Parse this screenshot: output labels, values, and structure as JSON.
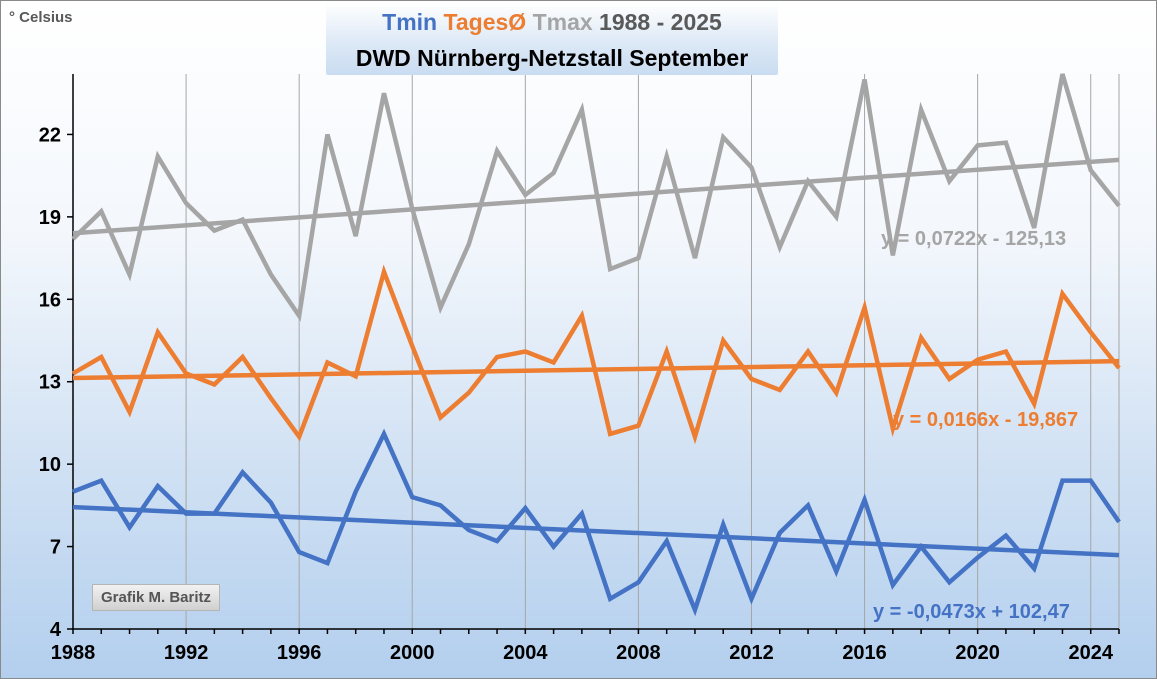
{
  "chart_data": {
    "type": "line",
    "title_parts": [
      {
        "text": "Tmin",
        "color": "#4472C4"
      },
      {
        "text": "TagesØ",
        "color": "#ED7D31"
      },
      {
        "text": "Tmax",
        "color": "#A5A5A5"
      },
      {
        "text": "1988 - 2025",
        "color": "#595959"
      }
    ],
    "subtitle": "DWD Nürnberg-Netzstall September",
    "ylabel": "° Celsius",
    "xlabel": "",
    "x_ticks": [
      1988,
      1992,
      1996,
      2000,
      2004,
      2008,
      2012,
      2016,
      2020,
      2024
    ],
    "y_ticks": [
      4,
      7,
      10,
      13,
      16,
      19,
      22
    ],
    "xlim": [
      1988,
      2025
    ],
    "ylim": [
      4,
      24.2
    ],
    "grid": "vertical",
    "credit": "Grafik M. Baritz",
    "x": [
      1988,
      1989,
      1990,
      1991,
      1992,
      1993,
      1994,
      1995,
      1996,
      1997,
      1998,
      1999,
      2000,
      2001,
      2002,
      2003,
      2004,
      2005,
      2006,
      2007,
      2008,
      2009,
      2010,
      2011,
      2012,
      2013,
      2014,
      2015,
      2016,
      2017,
      2018,
      2019,
      2020,
      2021,
      2022,
      2023,
      2024,
      2025
    ],
    "series": [
      {
        "name": "Tmax",
        "color": "#A5A5A5",
        "values": [
          18.2,
          19.2,
          16.9,
          21.2,
          19.5,
          18.5,
          18.9,
          16.9,
          15.4,
          22.0,
          18.3,
          23.5,
          19.3,
          15.7,
          18.0,
          21.4,
          19.8,
          20.6,
          22.9,
          17.1,
          17.5,
          21.2,
          17.5,
          21.9,
          20.8,
          17.9,
          20.3,
          19.0,
          24.0,
          17.6,
          22.9,
          20.3,
          21.6,
          21.7,
          18.6,
          24.2,
          20.7,
          19.4
        ],
        "trend": {
          "slope": 0.0722,
          "intercept": -125.13,
          "equation": "y = 0,0722x - 125,13"
        }
      },
      {
        "name": "TagesØ",
        "color": "#ED7D31",
        "values": [
          13.3,
          13.9,
          11.9,
          14.8,
          13.3,
          12.9,
          13.9,
          12.4,
          11.0,
          13.7,
          13.2,
          17.0,
          14.3,
          11.7,
          12.6,
          13.9,
          14.1,
          13.7,
          15.4,
          11.1,
          11.4,
          14.1,
          11.0,
          14.5,
          13.1,
          12.7,
          14.1,
          12.6,
          15.7,
          11.3,
          14.6,
          13.1,
          13.8,
          14.1,
          12.2,
          16.2,
          14.8,
          13.5
        ],
        "trend": {
          "slope": 0.0166,
          "intercept": -19.867,
          "equation": "y = 0,0166x - 19,867"
        }
      },
      {
        "name": "Tmin",
        "color": "#4472C4",
        "values": [
          9.0,
          9.4,
          7.7,
          9.2,
          8.2,
          8.2,
          9.7,
          8.6,
          6.8,
          6.4,
          9.0,
          11.1,
          8.8,
          8.5,
          7.6,
          7.2,
          8.4,
          7.0,
          8.2,
          5.1,
          5.7,
          7.2,
          4.7,
          7.8,
          5.1,
          7.5,
          8.5,
          6.1,
          8.7,
          5.6,
          7.0,
          5.7,
          6.6,
          7.4,
          6.2,
          9.4,
          9.4,
          7.9
        ],
        "trend": {
          "slope": -0.0473,
          "intercept": 102.47,
          "equation": "y = -0,0473x + 102,47"
        }
      }
    ]
  }
}
